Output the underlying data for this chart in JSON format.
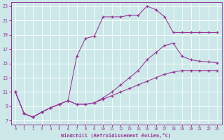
{
  "xlabel": "Windchill (Refroidissement éolien,°C)",
  "background_color": "#cce8e8",
  "line_color": "#993399",
  "xlim": [
    -0.5,
    23.5
  ],
  "ylim": [
    6.5,
    23.5
  ],
  "xticks": [
    0,
    1,
    2,
    3,
    4,
    5,
    6,
    7,
    8,
    9,
    10,
    11,
    12,
    13,
    14,
    15,
    16,
    17,
    18,
    19,
    20,
    21,
    22,
    23
  ],
  "yticks": [
    7,
    9,
    11,
    13,
    15,
    17,
    19,
    21,
    23
  ],
  "line1_x": [
    0,
    1,
    2,
    3,
    4,
    5,
    6,
    7,
    8,
    9,
    10,
    11,
    12,
    13,
    14,
    15,
    16,
    17,
    18,
    19,
    20,
    21,
    22,
    23
  ],
  "line1_y": [
    11,
    8,
    7.5,
    8.2,
    8.8,
    9.3,
    9.8,
    16,
    18.5,
    18.8,
    21.5,
    21.5,
    21.5,
    21.7,
    21.7,
    23,
    22.5,
    21.5,
    19.3,
    19.3,
    19.3,
    19.3,
    19.3,
    19.3
  ],
  "line2_x": [
    0,
    1,
    2,
    3,
    4,
    5,
    6,
    7,
    8,
    9,
    10,
    11,
    12,
    13,
    14,
    15,
    16,
    17,
    18,
    19,
    20,
    21,
    22,
    23
  ],
  "line2_y": [
    11,
    8,
    7.5,
    8.2,
    8.8,
    9.3,
    9.8,
    9.3,
    9.3,
    9.5,
    10.2,
    11,
    12,
    13,
    14,
    15.5,
    16.5,
    17.5,
    17.8,
    16,
    15.5,
    15.3,
    15.2,
    15.1
  ],
  "line3_x": [
    0,
    1,
    2,
    3,
    4,
    5,
    6,
    7,
    8,
    9,
    10,
    11,
    12,
    13,
    14,
    15,
    16,
    17,
    18,
    19,
    20,
    21,
    22,
    23
  ],
  "line3_y": [
    11,
    8,
    7.5,
    8.2,
    8.8,
    9.3,
    9.8,
    9.3,
    9.3,
    9.5,
    10,
    10.5,
    11,
    11.5,
    12,
    12.5,
    13,
    13.5,
    13.8,
    14,
    14,
    14,
    14,
    14
  ]
}
